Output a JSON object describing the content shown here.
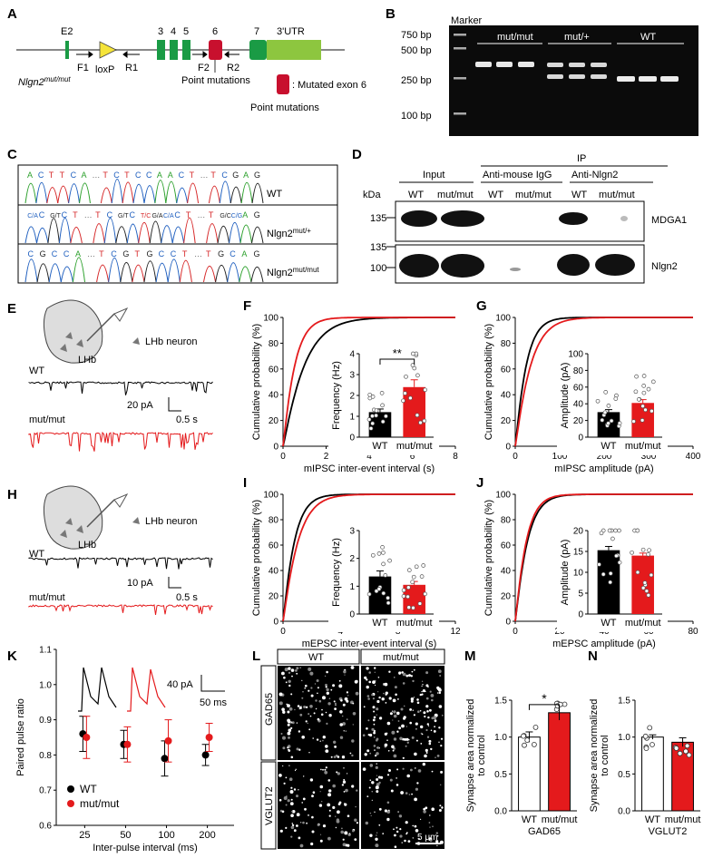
{
  "panels": {
    "A": {
      "letter": "A",
      "exon_labels": [
        "E2",
        "3",
        "4",
        "5",
        "6",
        "7",
        "3'UTR"
      ],
      "primers": [
        "F1",
        "R1",
        "F2",
        "R2"
      ],
      "loxp": "loxP",
      "allele": "Nlgn2",
      "allele_sup": "mut/mut",
      "point_mut_1": "Point mutations",
      "legend": ": Mutated exon 6",
      "point_mut_2": "Point mutations",
      "colors": {
        "exon": "#1a9b45",
        "utr": "#8dc63f",
        "mut": "#c8102e",
        "loxp": "#f5e43a"
      }
    },
    "B": {
      "letter": "B",
      "marker": "Marker",
      "ladder": [
        "750 bp",
        "500 bp",
        "250 bp",
        "100 bp"
      ],
      "groups": [
        "mut/mut",
        "mut/+",
        "WT"
      ]
    },
    "C": {
      "letter": "C",
      "row1_seq": [
        "A",
        "C",
        "T",
        "T",
        "C",
        "A",
        "…",
        "T",
        "C",
        "T",
        "C",
        "C",
        "A",
        "A",
        "C",
        "T",
        "…",
        "T",
        "C",
        "G",
        "A",
        "G"
      ],
      "row2_seq": [
        "C/A",
        "C",
        "G/T",
        "C",
        "T",
        "…",
        "T",
        "C",
        "G/T",
        "C",
        "T/C",
        "G/A",
        "C/A",
        "C",
        "T",
        "…",
        "T",
        "G/C",
        "C/G",
        "A",
        "G"
      ],
      "row3_seq": [
        "C",
        "G",
        "C",
        "C",
        "A",
        "…",
        "T",
        "C",
        "G",
        "T",
        "G",
        "C",
        "C",
        "T",
        "…",
        "T",
        "G",
        "C",
        "A",
        "G"
      ],
      "labels": [
        "WT",
        "Nlgn2",
        "Nlgn2"
      ],
      "sups": [
        "mut/+",
        "mut/mut"
      ]
    },
    "D": {
      "letter": "D",
      "ip": "IP",
      "input": "Input",
      "anti_igg": "Anti-mouse IgG",
      "anti_nlgn2": "Anti-Nlgn2",
      "kda": "kDa",
      "lanes": [
        "WT",
        "mut/mut",
        "WT",
        "mut/mut",
        "WT",
        "mut/mut"
      ],
      "mw": [
        "135",
        "135",
        "100"
      ],
      "blots": [
        "MDGA1",
        "Nlgn2"
      ]
    },
    "E": {
      "letter": "E",
      "region": "LHb",
      "neuron": "LHb neuron",
      "wt": "WT",
      "mut": "mut/mut",
      "scale_y": "20 pA",
      "scale_x": "0.5 s"
    },
    "H": {
      "letter": "H",
      "region": "LHb",
      "neuron": "LHb neuron",
      "wt": "WT",
      "mut": "mut/mut",
      "scale_y": "10 pA",
      "scale_x": "0.5 s"
    },
    "L": {
      "letter": "L",
      "cols": [
        "WT",
        "mut/mut"
      ],
      "rows": [
        "GAD65",
        "VGLUT2"
      ],
      "scale": "5 μm"
    }
  },
  "chart_data": [
    {
      "panel": "F",
      "type": "line",
      "ylabel": "Cumulative probability (%)",
      "xlabel": "mIPSC inter-event interval (s)",
      "xlim": [
        0,
        8
      ],
      "xticks": [
        0,
        2,
        4,
        6,
        8
      ],
      "ylim": [
        0,
        100
      ],
      "yticks": [
        0,
        20,
        40,
        60,
        80,
        100
      ],
      "series": [
        {
          "name": "WT",
          "tau": 1.0,
          "color": "#000000"
        },
        {
          "name": "mut/mut",
          "tau": 0.55,
          "color": "#e41a1c"
        }
      ],
      "inset": {
        "type": "bar",
        "ylabel": "Frequency (Hz)",
        "categories": [
          "WT",
          "mut/mut"
        ],
        "values": [
          1.2,
          2.4
        ],
        "errors": [
          0.15,
          0.35
        ],
        "ylim": [
          0,
          4
        ],
        "yticks": [
          0,
          1,
          2,
          3,
          4
        ],
        "sig": "**"
      }
    },
    {
      "panel": "G",
      "type": "line",
      "ylabel": "Cumulative probability (%)",
      "xlabel": "mIPSC amplitude (pA)",
      "xlim": [
        0,
        400
      ],
      "xticks": [
        0,
        100,
        200,
        300,
        400
      ],
      "ylim": [
        0,
        100
      ],
      "yticks": [
        0,
        20,
        40,
        60,
        80,
        100
      ],
      "series": [
        {
          "name": "WT",
          "tau": 25,
          "color": "#000000"
        },
        {
          "name": "mut/mut",
          "tau": 35,
          "color": "#e41a1c"
        }
      ],
      "inset": {
        "type": "bar",
        "ylabel": "Amplitude (pA)",
        "categories": [
          "WT",
          "mut/mut"
        ],
        "values": [
          30,
          41
        ],
        "errors": [
          3,
          4
        ],
        "ylim": [
          0,
          100
        ],
        "yticks": [
          0,
          20,
          40,
          60,
          80,
          100
        ],
        "sig": ""
      }
    },
    {
      "panel": "I",
      "type": "line",
      "ylabel": "Cumulative probability (%)",
      "xlabel": "mEPSC inter-event interval (s)",
      "xlim": [
        0,
        12
      ],
      "xticks": [
        0,
        4,
        8,
        12
      ],
      "ylim": [
        0,
        100
      ],
      "yticks": [
        0,
        20,
        40,
        60,
        80,
        100
      ],
      "series": [
        {
          "name": "WT",
          "tau": 0.8,
          "color": "#000000"
        },
        {
          "name": "mut/mut",
          "tau": 1.05,
          "color": "#e41a1c"
        }
      ],
      "inset": {
        "type": "bar",
        "ylabel": "Frequency (Hz)",
        "categories": [
          "WT",
          "mut/mut"
        ],
        "values": [
          1.35,
          1.05
        ],
        "errors": [
          0.2,
          0.12
        ],
        "ylim": [
          0,
          3
        ],
        "yticks": [
          0,
          1,
          2,
          3
        ],
        "sig": ""
      }
    },
    {
      "panel": "J",
      "type": "line",
      "ylabel": "Cumulative probability (%)",
      "xlabel": "mEPSC amplitude (pA)",
      "xlim": [
        0,
        80
      ],
      "xticks": [
        0,
        20,
        40,
        60,
        80
      ],
      "ylim": [
        0,
        100
      ],
      "yticks": [
        0,
        20,
        40,
        60,
        80,
        100
      ],
      "series": [
        {
          "name": "WT",
          "tau": 5.5,
          "color": "#000000"
        },
        {
          "name": "mut/mut",
          "tau": 5.0,
          "color": "#e41a1c"
        }
      ],
      "inset": {
        "type": "bar",
        "ylabel": "Amplitude (pA)",
        "categories": [
          "WT",
          "mut/mut"
        ],
        "values": [
          15.3,
          14.0
        ],
        "errors": [
          0.9,
          0.6
        ],
        "ylim": [
          0,
          20
        ],
        "yticks": [
          0,
          5,
          10,
          15,
          20
        ],
        "sig": ""
      }
    },
    {
      "panel": "K",
      "type": "scatter",
      "ylabel": "Paired pulse ratio",
      "xlabel": "Inter-pulse interval (ms)",
      "categories": [
        "25",
        "50",
        "100",
        "200"
      ],
      "ylim": [
        0.6,
        1.1
      ],
      "yticks": [
        0.6,
        0.7,
        0.8,
        0.9,
        1.0,
        1.1
      ],
      "series": [
        {
          "name": "WT",
          "values": [
            0.86,
            0.83,
            0.79,
            0.8
          ],
          "errors": [
            0.05,
            0.04,
            0.05,
            0.03
          ],
          "color": "#000000"
        },
        {
          "name": "mut/mut",
          "values": [
            0.85,
            0.83,
            0.84,
            0.85
          ],
          "errors": [
            0.06,
            0.05,
            0.06,
            0.04
          ],
          "color": "#e41a1c"
        }
      ],
      "scale_y": "40 pA",
      "scale_x": "50 ms"
    },
    {
      "panel": "M",
      "type": "bar",
      "ylabel": "Synapse area normalized to control",
      "xlabel": "GAD65",
      "categories": [
        "WT",
        "mut/mut"
      ],
      "values": [
        1.0,
        1.33
      ],
      "errors": [
        0.07,
        0.1
      ],
      "ylim": [
        0,
        1.5
      ],
      "yticks": [
        0.0,
        0.5,
        1.0,
        1.5
      ],
      "sig": "*"
    },
    {
      "panel": "N",
      "type": "bar",
      "ylabel": "Synapse area normalized to control",
      "xlabel": "VGLUT2",
      "categories": [
        "WT",
        "mut/mut"
      ],
      "values": [
        1.0,
        0.93
      ],
      "errors": [
        0.03,
        0.06
      ],
      "ylim": [
        0,
        1.5
      ],
      "yticks": [
        0.0,
        0.5,
        1.0,
        1.5
      ],
      "sig": ""
    }
  ]
}
